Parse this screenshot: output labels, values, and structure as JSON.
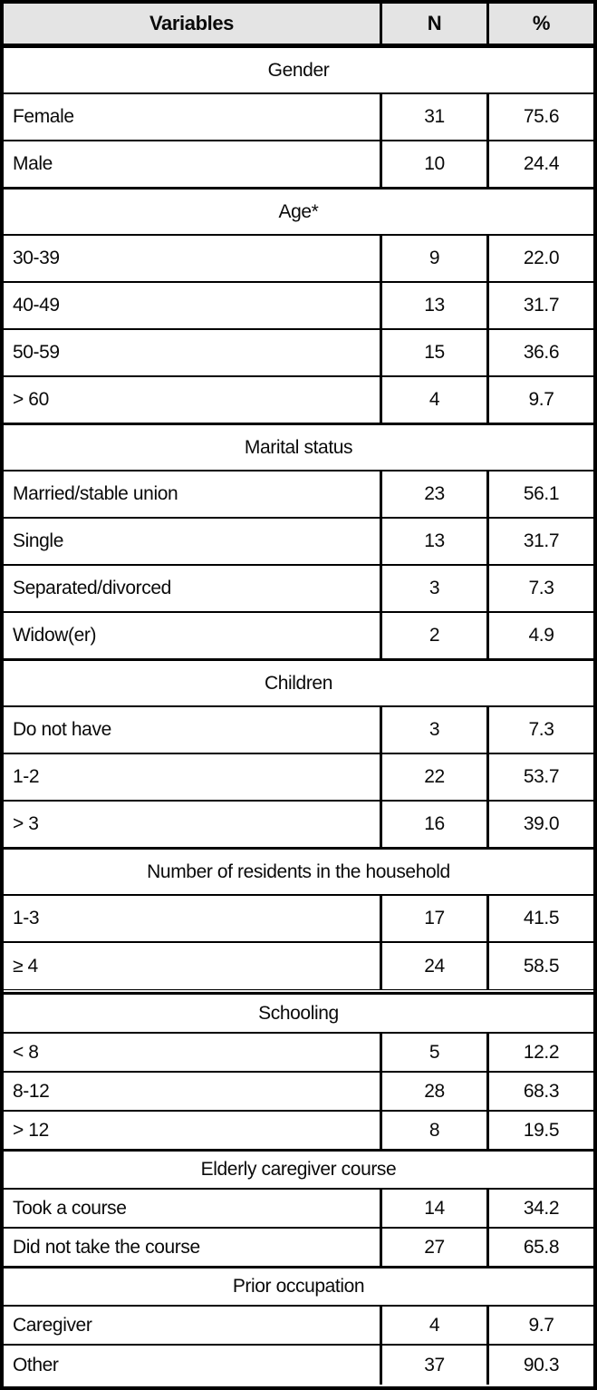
{
  "table": {
    "columns": [
      "Variables",
      "N",
      "%"
    ],
    "header_bg": "#e4e4e4",
    "border_color": "#000000",
    "sections": [
      {
        "label": "Gender",
        "compact": false,
        "divider_after": false,
        "rows": [
          {
            "variable": "Female",
            "n": "31",
            "pct": "75.6"
          },
          {
            "variable": "Male",
            "n": "10",
            "pct": "24.4"
          }
        ]
      },
      {
        "label": "Age*",
        "compact": false,
        "divider_after": false,
        "rows": [
          {
            "variable": "30-39",
            "n": "9",
            "pct": "22.0"
          },
          {
            "variable": "40-49",
            "n": "13",
            "pct": "31.7"
          },
          {
            "variable": "50-59",
            "n": "15",
            "pct": "36.6"
          },
          {
            "variable": "> 60",
            "n": "4",
            "pct": "9.7"
          }
        ]
      },
      {
        "label": "Marital status",
        "compact": false,
        "divider_after": false,
        "rows": [
          {
            "variable": "Married/stable union",
            "n": "23",
            "pct": "56.1"
          },
          {
            "variable": "Single",
            "n": "13",
            "pct": "31.7"
          },
          {
            "variable": "Separated/divorced",
            "n": "3",
            "pct": "7.3"
          },
          {
            "variable": "Widow(er)",
            "n": "2",
            "pct": "4.9"
          }
        ]
      },
      {
        "label": "Children",
        "compact": false,
        "divider_after": false,
        "rows": [
          {
            "variable": "Do not have",
            "n": "3",
            "pct": "7.3"
          },
          {
            "variable": "1-2",
            "n": "22",
            "pct": "53.7"
          },
          {
            "variable": "> 3",
            "n": "16",
            "pct": "39.0"
          }
        ]
      },
      {
        "label": "Number of residents in the household",
        "compact": false,
        "divider_after": true,
        "rows": [
          {
            "variable": "1-3",
            "n": "17",
            "pct": "41.5"
          },
          {
            "variable": "≥ 4",
            "n": "24",
            "pct": "58.5"
          }
        ]
      },
      {
        "label": "Schooling",
        "compact": true,
        "divider_after": false,
        "rows": [
          {
            "variable": "< 8",
            "n": "5",
            "pct": "12.2"
          },
          {
            "variable": "8-12",
            "n": "28",
            "pct": "68.3"
          },
          {
            "variable": "> 12",
            "n": "8",
            "pct": "19.5"
          }
        ]
      },
      {
        "label": "Elderly caregiver course",
        "compact": true,
        "divider_after": false,
        "rows": [
          {
            "variable": "Took a course",
            "n": "14",
            "pct": "34.2"
          },
          {
            "variable": "Did not take the course",
            "n": "27",
            "pct": "65.8"
          }
        ]
      },
      {
        "label": "Prior occupation",
        "compact": true,
        "divider_after": false,
        "rows": [
          {
            "variable": "Caregiver",
            "n": "4",
            "pct": "9.7"
          },
          {
            "variable": "Other",
            "n": "37",
            "pct": "90.3"
          }
        ]
      }
    ]
  }
}
